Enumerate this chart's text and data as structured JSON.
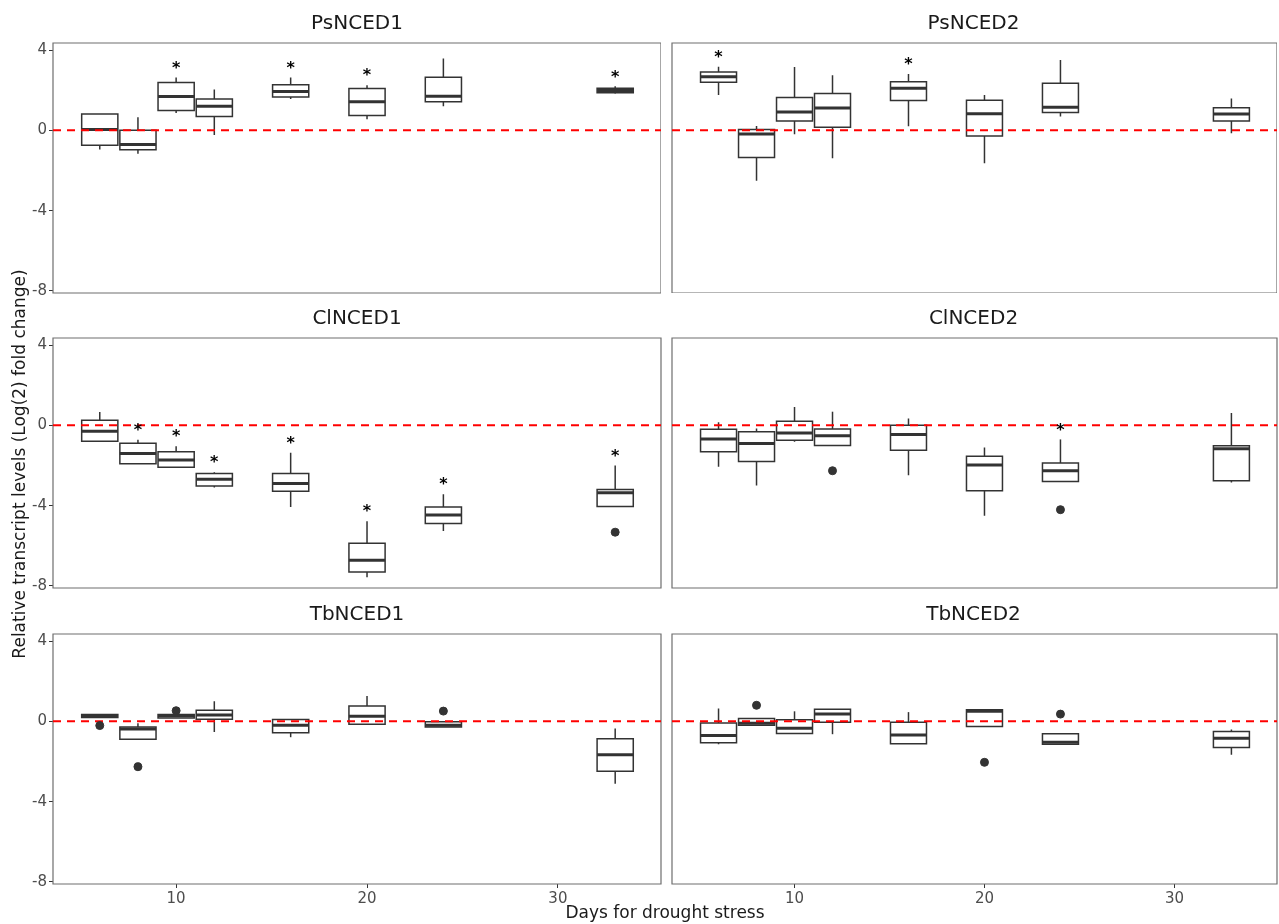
{
  "chart_data": [
    {
      "type": "box",
      "title": "PsNCED1",
      "x": [
        6,
        8,
        10,
        12,
        16,
        20,
        24,
        33
      ],
      "xlim": [
        3.55,
        35.4
      ],
      "xticks": [
        10,
        20,
        30
      ],
      "ylim": [
        -8.1,
        4.35
      ],
      "yticks": [
        -8,
        -4,
        0,
        4
      ],
      "tick_labels": "y",
      "boxes": [
        {
          "low": -0.95,
          "q1": -0.74,
          "median": 0.04,
          "q3": 0.82,
          "high": 0.82
        },
        {
          "low": -1.16,
          "q1": -0.97,
          "median": -0.7,
          "q3": 0,
          "high": 0.65
        },
        {
          "low": 0.86,
          "q1": 0.99,
          "median": 1.68,
          "q3": 2.38,
          "high": 2.63
        },
        {
          "low": -0.23,
          "q1": 0.69,
          "median": 1.2,
          "q3": 1.56,
          "high": 2.04
        },
        {
          "low": 1.56,
          "q1": 1.66,
          "median": 1.94,
          "q3": 2.27,
          "high": 2.63
        },
        {
          "low": 0.55,
          "q1": 0.74,
          "median": 1.43,
          "q3": 2.08,
          "high": 2.25
        },
        {
          "low": 1.2,
          "q1": 1.43,
          "median": 1.7,
          "q3": 2.65,
          "high": 3.58
        },
        {
          "low": 1.83,
          "q1": 1.87,
          "median": 1.98,
          "q3": 2.1,
          "high": 2.19
        }
      ],
      "ref_lines": [
        {
          "axis": "y",
          "value": 0,
          "color": "#ff0000",
          "line_style": "dashed"
        }
      ],
      "annotations": [
        {
          "text": "*",
          "x": 10,
          "y": 2.63
        },
        {
          "text": "*",
          "x": 16,
          "y": 2.63
        },
        {
          "text": "*",
          "x": 20,
          "y": 2.25
        },
        {
          "text": "*",
          "x": 33,
          "y": 2.19
        }
      ]
    },
    {
      "type": "box",
      "title": "PsNCED2",
      "x": [
        6,
        8,
        10,
        12,
        16,
        20,
        24,
        33
      ],
      "xlim": [
        3.55,
        35.4
      ],
      "xticks": [
        10,
        20,
        30
      ],
      "ylim": [
        -8.1,
        4.35
      ],
      "yticks": [
        -8,
        -4,
        0,
        4
      ],
      "tick_labels": false,
      "boxes": [
        {
          "low": 1.76,
          "q1": 2.4,
          "median": 2.67,
          "q3": 2.91,
          "high": 3.17
        },
        {
          "low": -2.51,
          "q1": -1.35,
          "median": -0.18,
          "q3": 0.04,
          "high": 0.22
        },
        {
          "low": -0.2,
          "q1": 0.46,
          "median": 0.91,
          "q3": 1.64,
          "high": 3.15
        },
        {
          "low": -1.39,
          "q1": 0.16,
          "median": 1.11,
          "q3": 1.84,
          "high": 2.75
        },
        {
          "low": 0.2,
          "q1": 1.49,
          "median": 2.1,
          "q3": 2.42,
          "high": 2.81
        },
        {
          "low": -1.64,
          "q1": -0.28,
          "median": 0.83,
          "q3": 1.5,
          "high": 1.76
        },
        {
          "low": 0.69,
          "q1": 0.89,
          "median": 1.15,
          "q3": 2.34,
          "high": 3.5
        },
        {
          "low": -0.14,
          "q1": 0.46,
          "median": 0.81,
          "q3": 1.13,
          "high": 1.58
        }
      ],
      "ref_lines": [
        {
          "axis": "y",
          "value": 0,
          "color": "#ff0000",
          "line_style": "dashed"
        }
      ],
      "annotations": [
        {
          "text": "*",
          "x": 6,
          "y": 3.17
        },
        {
          "text": "*",
          "x": 16,
          "y": 2.81
        }
      ]
    },
    {
      "type": "box",
      "title": "ClNCED1",
      "ylabel": "Relative transcript levels (Log(2) fold change)",
      "x": [
        6,
        8,
        10,
        12,
        16,
        20,
        24,
        33
      ],
      "xlim": [
        3.55,
        35.4
      ],
      "xticks": [
        10,
        20,
        30
      ],
      "ylim": [
        -8.1,
        4.35
      ],
      "yticks": [
        -8,
        -4,
        0,
        4
      ],
      "tick_labels": "y",
      "boxes": [
        {
          "low": -0.79,
          "q1": -0.79,
          "median": -0.3,
          "q3": 0.26,
          "high": 0.66
        },
        {
          "low": -1.91,
          "q1": -1.91,
          "median": -1.4,
          "q3": -0.89,
          "high": -0.72
        },
        {
          "low": -2.09,
          "q1": -2.09,
          "median": -1.72,
          "q3": -1.32,
          "high": -1.04
        },
        {
          "low": -3.09,
          "q1": -3.02,
          "median": -2.68,
          "q3": -2.4,
          "high": -2.34
        },
        {
          "low": -4.06,
          "q1": -3.28,
          "median": -2.89,
          "q3": -2.4,
          "high": -1.36
        },
        {
          "low": -7.57,
          "q1": -7.3,
          "median": -6.72,
          "q3": -5.87,
          "high": -4.77
        },
        {
          "low": -5.26,
          "q1": -4.89,
          "median": -4.47,
          "q3": -4.06,
          "high": -3.43
        },
        {
          "low": -4.04,
          "q1": -4.04,
          "median": -3.36,
          "q3": -3.19,
          "high": -2.0,
          "outliers": [
            -5.32
          ]
        }
      ],
      "ref_lines": [
        {
          "axis": "y",
          "value": 0,
          "color": "#ff0000",
          "line_style": "dashed"
        }
      ],
      "annotations": [
        {
          "text": "*",
          "x": 8,
          "y": -0.72
        },
        {
          "text": "*",
          "x": 10,
          "y": -1.04
        },
        {
          "text": "*",
          "x": 12,
          "y": -2.34
        },
        {
          "text": "*",
          "x": 16,
          "y": -1.36
        },
        {
          "text": "*",
          "x": 20,
          "y": -4.77
        },
        {
          "text": "*",
          "x": 24,
          "y": -3.43
        },
        {
          "text": "*",
          "x": 33,
          "y": -2.0
        }
      ]
    },
    {
      "type": "box",
      "title": "ClNCED2",
      "x": [
        6,
        8,
        10,
        12,
        16,
        20,
        24,
        33
      ],
      "xlim": [
        3.55,
        35.4
      ],
      "xticks": [
        10,
        20,
        30
      ],
      "ylim": [
        -8.1,
        4.35
      ],
      "yticks": [
        -8,
        -4,
        0,
        4
      ],
      "tick_labels": false,
      "boxes": [
        {
          "low": -2.06,
          "q1": -1.32,
          "median": -0.68,
          "q3": -0.2,
          "high": 0.16
        },
        {
          "low": -3.0,
          "q1": -1.8,
          "median": -0.9,
          "q3": -0.32,
          "high": -0.16
        },
        {
          "low": -0.82,
          "q1": -0.74,
          "median": -0.38,
          "q3": 0.2,
          "high": 0.92
        },
        {
          "low": -1.0,
          "q1": -1.0,
          "median": -0.52,
          "q3": -0.18,
          "high": 0.68,
          "outliers": [
            -2.26
          ]
        },
        {
          "low": -2.48,
          "q1": -1.24,
          "median": -0.46,
          "q3": 0,
          "high": 0.34
        },
        {
          "low": -4.5,
          "q1": -3.26,
          "median": -1.98,
          "q3": -1.54,
          "high": -1.1
        },
        {
          "low": -2.8,
          "q1": -2.8,
          "median": -2.26,
          "q3": -1.88,
          "high": -0.7,
          "outliers": [
            -4.2
          ]
        },
        {
          "low": -2.84,
          "q1": -2.76,
          "median": -1.16,
          "q3": -1.02,
          "high": 0.62
        }
      ],
      "ref_lines": [
        {
          "axis": "y",
          "value": 0,
          "color": "#ff0000",
          "line_style": "dashed"
        }
      ],
      "annotations": [
        {
          "text": "*",
          "x": 24,
          "y": -0.7
        }
      ]
    },
    {
      "type": "box",
      "title": "TbNCED1",
      "xlabel": "Days for drought stress",
      "x": [
        6,
        8,
        10,
        12,
        16,
        20,
        24,
        33
      ],
      "xlim": [
        3.55,
        35.4
      ],
      "xticks": [
        10,
        20,
        30
      ],
      "ylim": [
        -8.1,
        4.35
      ],
      "yticks": [
        -8,
        -4,
        0,
        4
      ],
      "boxes": [
        {
          "low": 0.19,
          "q1": 0.19,
          "median": 0.28,
          "q3": 0.34,
          "high": 0.34,
          "outliers": [
            -0.21
          ]
        },
        {
          "low": -0.89,
          "q1": -0.89,
          "median": -0.38,
          "q3": -0.28,
          "high": -0.09,
          "outliers": [
            -2.26
          ]
        },
        {
          "low": 0.17,
          "q1": 0.17,
          "median": 0.28,
          "q3": 0.34,
          "high": 0.34,
          "outliers": [
            0.53
          ]
        },
        {
          "low": -0.53,
          "q1": 0.11,
          "median": 0.32,
          "q3": 0.55,
          "high": 1.0
        },
        {
          "low": -0.79,
          "q1": -0.57,
          "median": -0.19,
          "q3": 0.09,
          "high": 0.09
        },
        {
          "low": -0.15,
          "q1": -0.15,
          "median": 0.26,
          "q3": 0.77,
          "high": 1.26
        },
        {
          "low": -0.28,
          "q1": -0.28,
          "median": -0.19,
          "q3": -0.02,
          "high": -0.02,
          "outliers": [
            0.51
          ]
        },
        {
          "low": -3.11,
          "q1": -2.49,
          "median": -1.66,
          "q3": -0.87,
          "high": -0.36
        }
      ],
      "ref_lines": [
        {
          "axis": "y",
          "value": 0,
          "color": "#ff0000",
          "line_style": "dashed"
        }
      ]
    },
    {
      "type": "box",
      "title": "TbNCED2",
      "x": [
        6,
        8,
        10,
        12,
        16,
        20,
        24,
        33
      ],
      "xlim": [
        3.55,
        35.4
      ],
      "xticks": [
        10,
        20,
        30
      ],
      "ylim": [
        -8.1,
        4.35
      ],
      "yticks": [
        -8,
        -4,
        0,
        4
      ],
      "tick_labels": "x",
      "boxes": [
        {
          "low": -1.14,
          "q1": -1.06,
          "median": -0.7,
          "q3": -0.08,
          "high": 0.64
        },
        {
          "low": -0.2,
          "q1": -0.2,
          "median": -0.1,
          "q3": 0.14,
          "high": 0.14,
          "outliers": [
            0.8
          ]
        },
        {
          "low": -0.6,
          "q1": -0.6,
          "median": -0.34,
          "q3": 0.08,
          "high": 0.5
        },
        {
          "low": -0.64,
          "q1": -0.04,
          "median": 0.36,
          "q3": 0.6,
          "high": 0.6
        },
        {
          "low": -1.12,
          "q1": -1.12,
          "median": -0.68,
          "q3": -0.04,
          "high": 0.46
        },
        {
          "low": -0.26,
          "q1": -0.26,
          "median": 0.5,
          "q3": 0.58,
          "high": 0.58,
          "outliers": [
            -2.04
          ]
        },
        {
          "low": -1.14,
          "q1": -1.14,
          "median": -1.04,
          "q3": -0.62,
          "high": -0.62,
          "outliers": [
            0.36
          ]
        },
        {
          "low": -1.66,
          "q1": -1.3,
          "median": -0.84,
          "q3": -0.5,
          "high": -0.4
        }
      ],
      "ref_lines": [
        {
          "axis": "y",
          "value": 0,
          "color": "#ff0000",
          "line_style": "dashed"
        }
      ]
    }
  ]
}
